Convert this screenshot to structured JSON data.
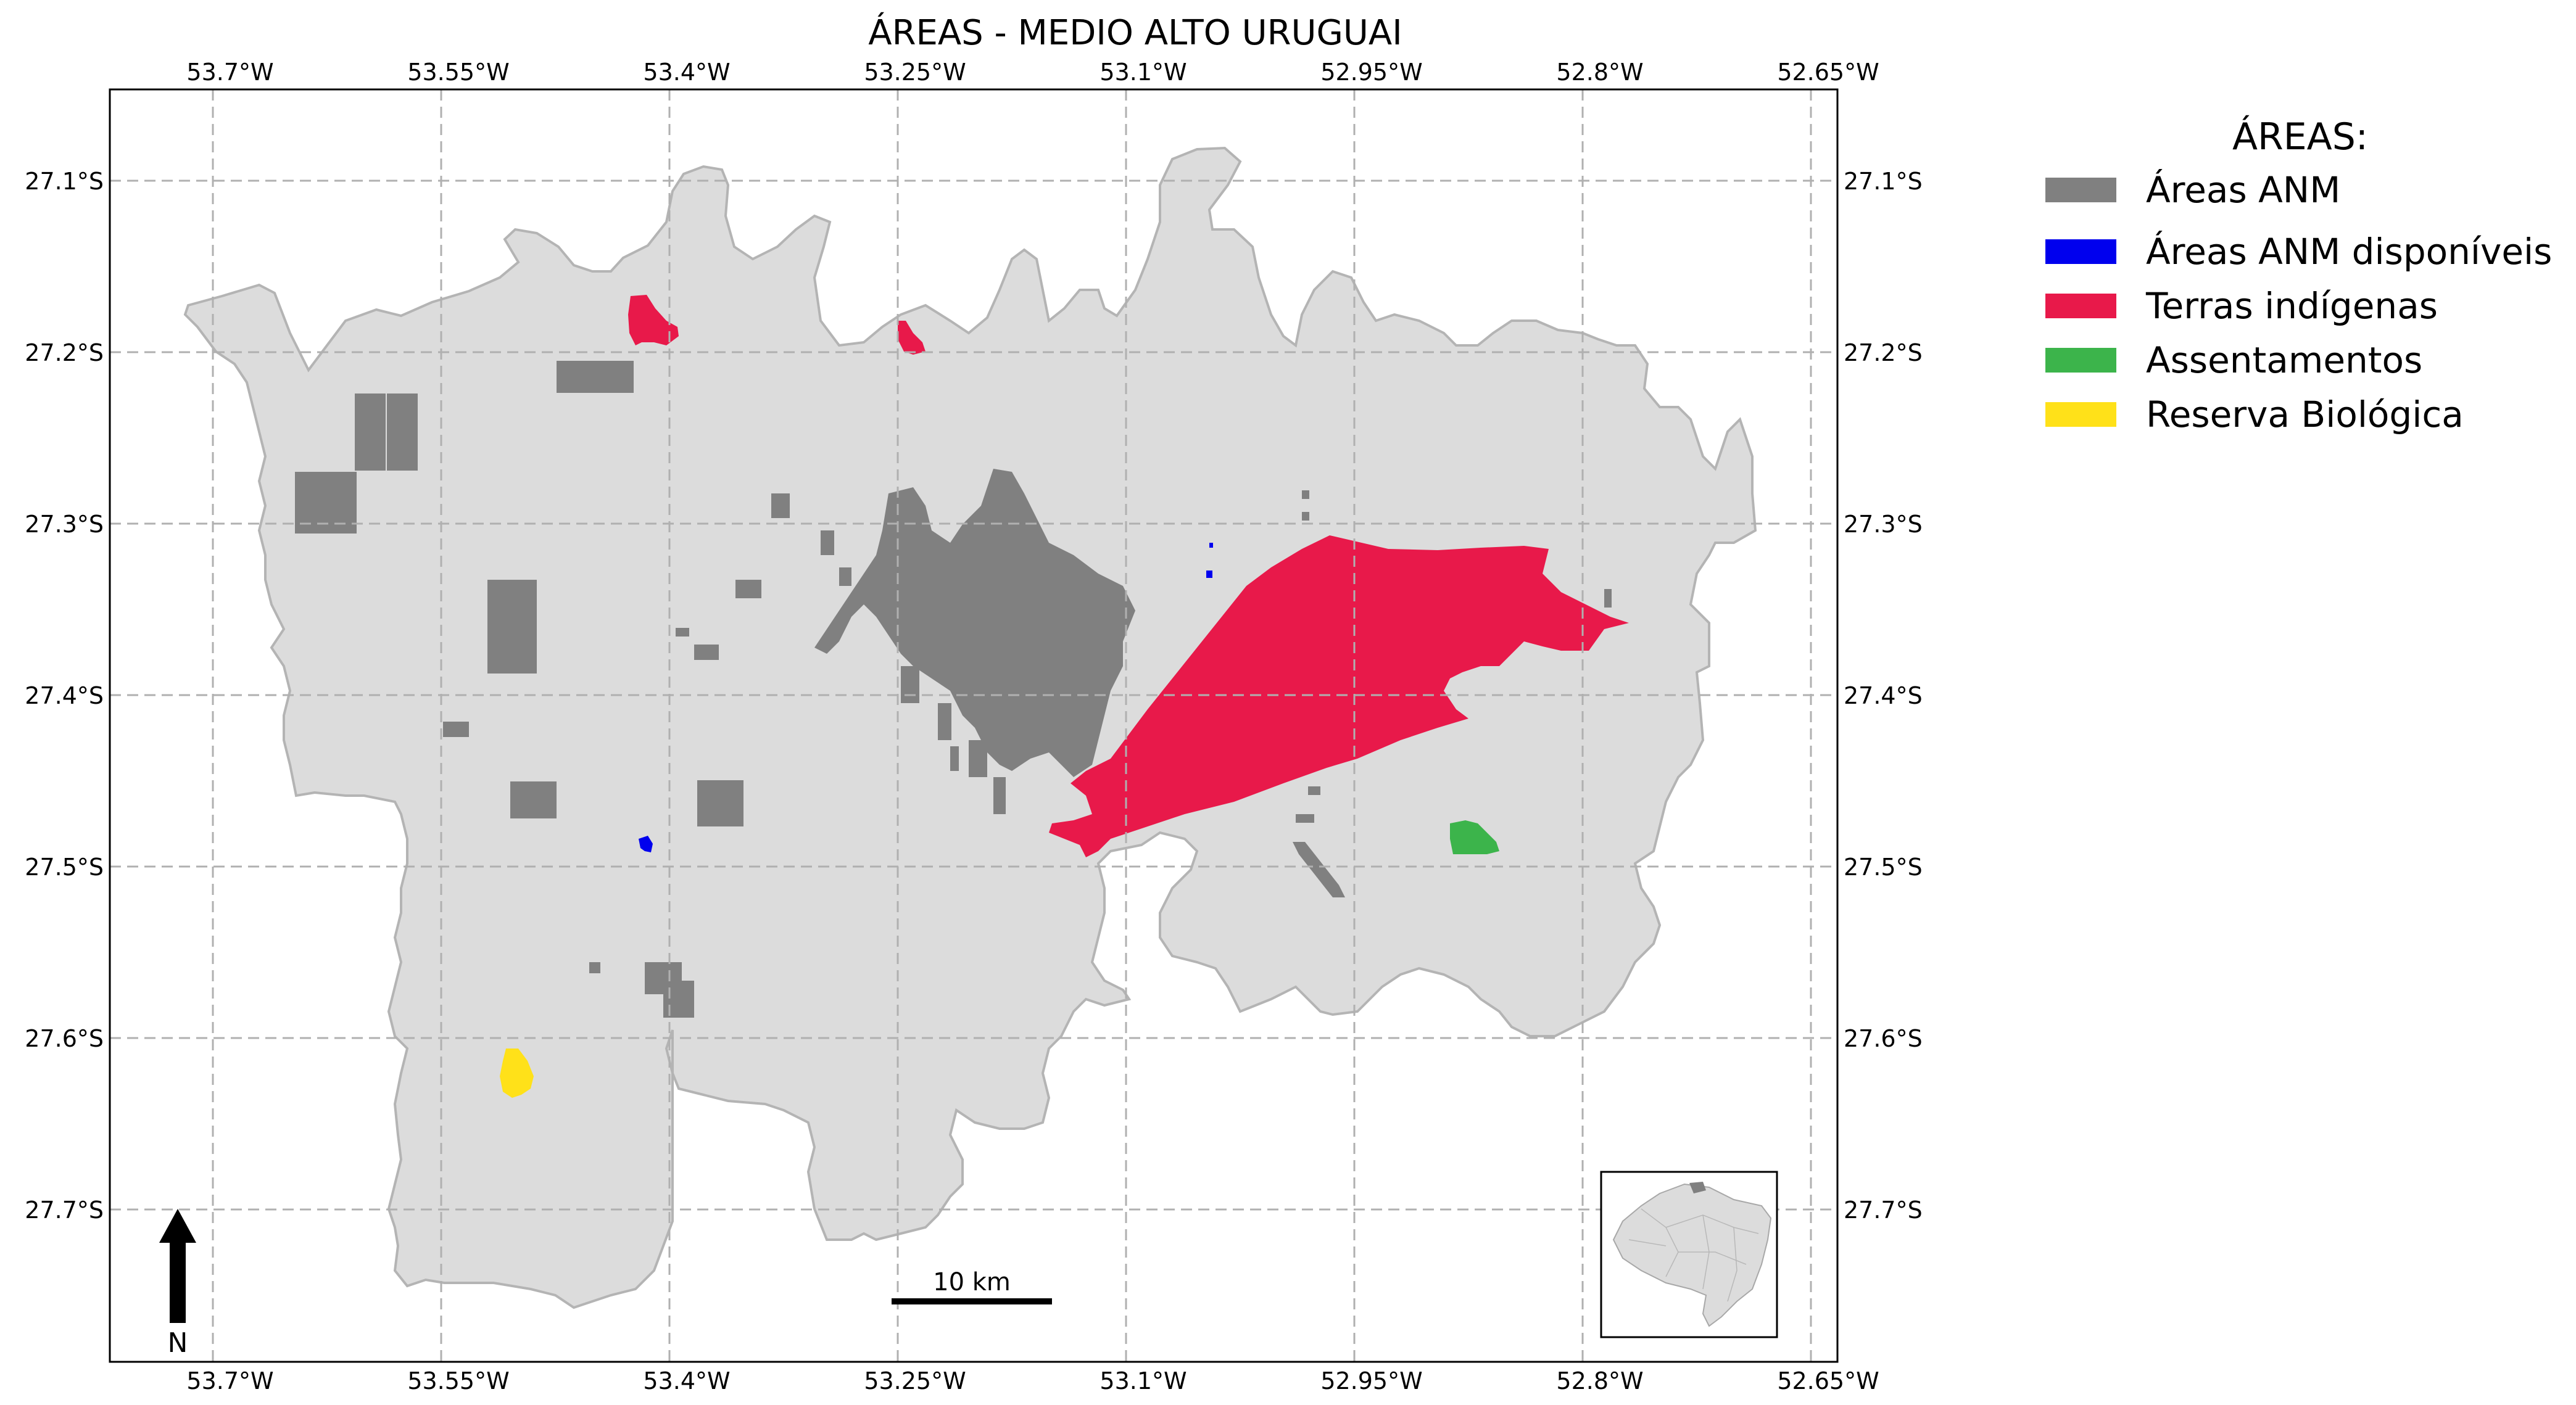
{
  "title": "ÁREAS - MEDIO ALTO URUGUAI",
  "axes": {
    "x_ticks": [
      "53.7°W",
      "53.55°W",
      "53.4°W",
      "53.25°W",
      "53.1°W",
      "52.95°W",
      "52.8°W",
      "52.65°W"
    ],
    "y_ticks": [
      "27.1°S",
      "27.2°S",
      "27.3°S",
      "27.4°S",
      "27.5°S",
      "27.6°S",
      "27.7°S"
    ]
  },
  "legend": {
    "title": "ÁREAS:",
    "items": [
      {
        "label": "Áreas ANM",
        "color": "#808080"
      },
      {
        "label": "Áreas ANM disponíveis",
        "color": "#0000ee"
      },
      {
        "label": "Terras indígenas",
        "color": "#e8194a"
      },
      {
        "label": "Assentamentos",
        "color": "#3cb44b"
      },
      {
        "label": "Reserva Biológica",
        "color": "#ffe119"
      }
    ]
  },
  "scale_bar": {
    "label": "10 km"
  },
  "north_arrow": {
    "label": "N"
  },
  "colors": {
    "region_fill": "#dcdcdc",
    "region_stroke": "#b4b4b4",
    "grid": "#b0b0b0"
  }
}
